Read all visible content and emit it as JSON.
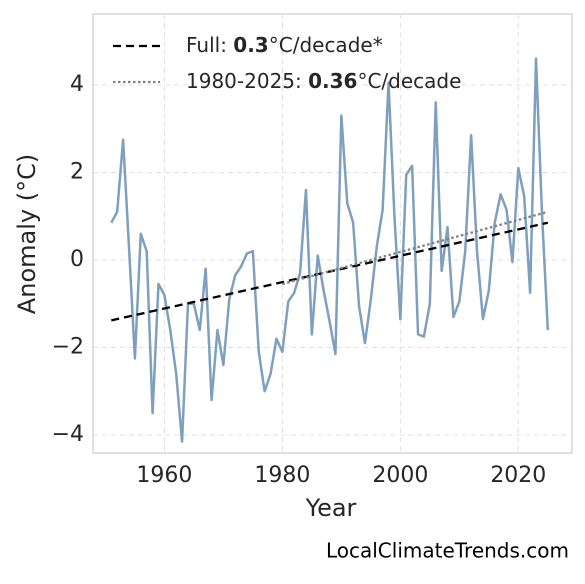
{
  "chart_data": {
    "type": "line",
    "x_label": "Year",
    "y_label": "Anomaly (°C)",
    "footer": "LocalClimateTrends.com",
    "x": [
      1951,
      1952,
      1953,
      1954,
      1955,
      1956,
      1957,
      1958,
      1959,
      1960,
      1961,
      1962,
      1963,
      1964,
      1965,
      1966,
      1967,
      1968,
      1969,
      1970,
      1971,
      1972,
      1973,
      1974,
      1975,
      1976,
      1977,
      1978,
      1979,
      1980,
      1981,
      1982,
      1983,
      1984,
      1985,
      1986,
      1987,
      1988,
      1989,
      1990,
      1991,
      1992,
      1993,
      1994,
      1995,
      1996,
      1997,
      1998,
      1999,
      2000,
      2001,
      2002,
      2003,
      2004,
      2005,
      2006,
      2007,
      2008,
      2009,
      2010,
      2011,
      2012,
      2013,
      2014,
      2015,
      2016,
      2017,
      2018,
      2019,
      2020,
      2021,
      2022,
      2023,
      2024,
      2025
    ],
    "values": [
      0.85,
      1.1,
      2.75,
      0.3,
      -2.25,
      0.6,
      0.2,
      -3.5,
      -0.55,
      -0.8,
      -1.6,
      -2.6,
      -4.15,
      -1.0,
      -1.0,
      -1.6,
      -0.2,
      -3.2,
      -1.6,
      -2.4,
      -0.9,
      -0.35,
      -0.15,
      0.15,
      0.2,
      -2.1,
      -3.0,
      -2.6,
      -1.8,
      -2.1,
      -0.95,
      -0.75,
      -0.3,
      1.6,
      -1.7,
      0.1,
      -0.7,
      -1.4,
      -2.15,
      3.3,
      1.3,
      0.85,
      -1.05,
      -1.9,
      -0.9,
      0.3,
      1.15,
      4.05,
      1.0,
      -1.35,
      1.95,
      2.15,
      -1.7,
      -1.75,
      -1.0,
      3.6,
      -0.25,
      0.75,
      -1.3,
      -0.95,
      0.2,
      2.85,
      0.2,
      -1.35,
      -0.7,
      0.85,
      1.5,
      1.15,
      -0.05,
      2.1,
      1.45,
      -0.75,
      4.6,
      1.1,
      -1.6
    ],
    "color": "#7f9fbf",
    "trend_lines": [
      {
        "label_prefix": "Full: ",
        "rate": 0.3,
        "label_suffix": "°C/decade*",
        "x": [
          1951,
          2025
        ],
        "values": [
          -1.38,
          0.85
        ],
        "color": "#000000",
        "dash": "dashed"
      },
      {
        "label_prefix": "1980-2025: ",
        "rate": 0.36,
        "label_suffix": "°C/decade",
        "x": [
          1980,
          2025
        ],
        "values": [
          -0.55,
          1.1
        ],
        "color": "#808080",
        "dash": "dotted"
      }
    ],
    "xlim": [
      1947.9,
      2029.1
    ],
    "ylim": [
      -4.41,
      5.62
    ],
    "xticks": [
      1960,
      1980,
      2000,
      2020
    ],
    "yticks": [
      {
        "value": -4,
        "label": "−4"
      },
      {
        "value": -2,
        "label": "−2"
      },
      0,
      2,
      4
    ],
    "grid": true
  }
}
